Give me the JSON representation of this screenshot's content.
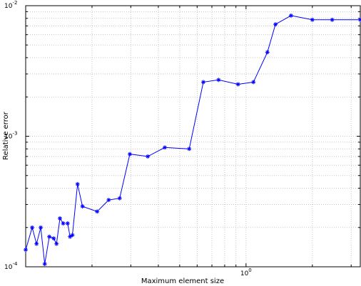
{
  "chart_data": {
    "type": "line",
    "xlabel": "Maximum element size",
    "ylabel": "Relative error",
    "xscale": "log",
    "yscale": "log",
    "xlim": [
      0.1,
      3.3
    ],
    "ylim": [
      0.0001,
      0.01
    ],
    "grid": true,
    "x_tick_labels": [
      {
        "base": "10",
        "exp": "0",
        "value": 1
      }
    ],
    "y_tick_labels": [
      {
        "base": "10",
        "exp": "-4",
        "value": 0.0001
      },
      {
        "base": "10",
        "exp": "-3",
        "value": 0.001
      },
      {
        "base": "10",
        "exp": "-2",
        "value": 0.01
      }
    ],
    "series": [
      {
        "marker": "asterisk",
        "color": "#0000ff",
        "x": [
          0.1,
          0.107,
          0.112,
          0.117,
          0.122,
          0.128,
          0.134,
          0.138,
          0.143,
          0.148,
          0.155,
          0.159,
          0.163,
          0.172,
          0.181,
          0.211,
          0.238,
          0.267,
          0.297,
          0.358,
          0.428,
          0.552,
          0.64,
          0.75,
          0.92,
          1.08,
          1.25,
          1.36,
          1.6,
          2.0,
          2.46,
          3.3
        ],
        "y": [
          0.000135,
          0.0002,
          0.00015,
          0.0002,
          0.000105,
          0.00017,
          0.000165,
          0.00015,
          0.000235,
          0.000215,
          0.000215,
          0.00017,
          0.000175,
          0.00043,
          0.00029,
          0.000265,
          0.000325,
          0.000335,
          0.00073,
          0.0007,
          0.00082,
          0.0008,
          0.0026,
          0.0027,
          0.0025,
          0.0026,
          0.0044,
          0.0072,
          0.0084,
          0.0078,
          0.0078,
          0.0078
        ]
      }
    ]
  }
}
